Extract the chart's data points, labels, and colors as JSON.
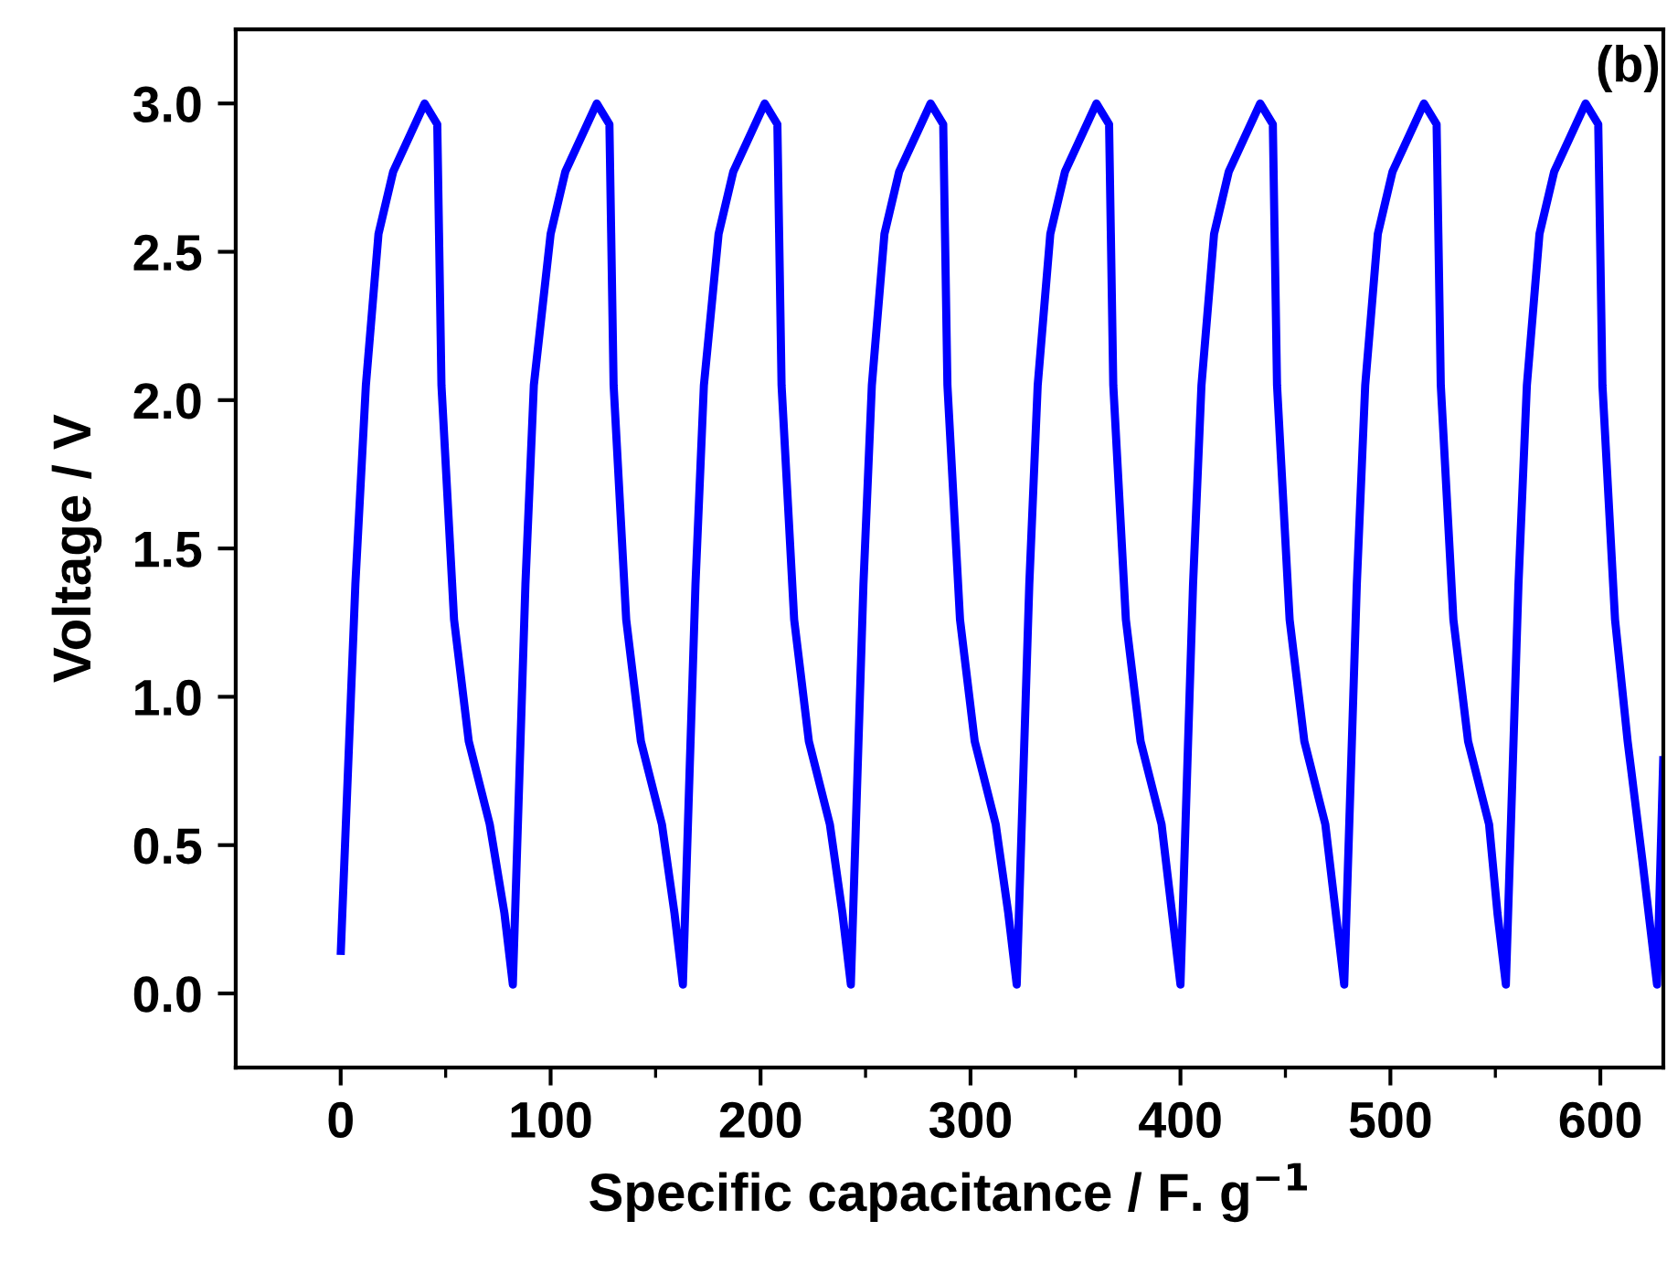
{
  "chart_data": {
    "type": "line",
    "xlabel": "Specific capacitance / F. g$^{−1}$",
    "ylabel": "Voltage / V",
    "annotations": [
      "(b)"
    ],
    "xlim": [
      -50,
      630
    ],
    "ylim": [
      -0.25,
      3.25
    ],
    "xticks": [
      0,
      {
        "value": 50,
        "label": null
      },
      100,
      {
        "value": 150,
        "label": null
      },
      200,
      {
        "value": 250,
        "label": null
      },
      300,
      {
        "value": 350,
        "label": null
      },
      400,
      {
        "value": 450,
        "label": null
      },
      500,
      {
        "value": 550,
        "label": null
      },
      600
    ],
    "yticks": [
      {
        "value": 0.0,
        "label": "0.0"
      },
      {
        "value": 0.5,
        "label": "0.5"
      },
      {
        "value": 1.0,
        "label": "1.0"
      },
      {
        "value": 1.5,
        "label": "1.5"
      },
      {
        "value": 2.0,
        "label": "2.0"
      },
      {
        "value": 2.5,
        "label": "2.5"
      },
      {
        "value": 3.0,
        "label": "3.0"
      }
    ],
    "grid": false,
    "legend": false,
    "marker": "none",
    "line_style": "solid",
    "series": [
      {
        "color": "#0000ff",
        "x": [
          0,
          7,
          12,
          18,
          25,
          40,
          46,
          48,
          54,
          61,
          71,
          78,
          82,
          88,
          92,
          100,
          107,
          122,
          128,
          130,
          136,
          143,
          153,
          159,
          163,
          169,
          173,
          180,
          187,
          202,
          208,
          210,
          216,
          223,
          233,
          239,
          243,
          249,
          253,
          259,
          266,
          281,
          287,
          289,
          295,
          302,
          312,
          318,
          322,
          328,
          332,
          338,
          345,
          360,
          366,
          368,
          374,
          381,
          391,
          396,
          400,
          406,
          410,
          416,
          423,
          438,
          444,
          446,
          452,
          459,
          469,
          474,
          478,
          484,
          488,
          494,
          501,
          516,
          522,
          524,
          530,
          537,
          547,
          551,
          555,
          561,
          565,
          571,
          578,
          593,
          599,
          601,
          607,
          613,
          620,
          627,
          630
        ],
        "values": [
          0.13,
          1.38,
          2.05,
          2.56,
          2.77,
          3.0,
          2.93,
          2.05,
          1.26,
          0.85,
          0.57,
          0.27,
          0.03,
          1.38,
          2.05,
          2.56,
          2.77,
          3.0,
          2.93,
          2.05,
          1.26,
          0.85,
          0.57,
          0.27,
          0.03,
          1.38,
          2.05,
          2.56,
          2.77,
          3.0,
          2.93,
          2.05,
          1.26,
          0.85,
          0.57,
          0.27,
          0.03,
          1.38,
          2.05,
          2.56,
          2.77,
          3.0,
          2.93,
          2.05,
          1.26,
          0.85,
          0.57,
          0.27,
          0.03,
          1.38,
          2.05,
          2.56,
          2.77,
          3.0,
          2.93,
          2.05,
          1.26,
          0.85,
          0.57,
          0.27,
          0.03,
          1.38,
          2.05,
          2.56,
          2.77,
          3.0,
          2.93,
          2.05,
          1.26,
          0.85,
          0.57,
          0.27,
          0.03,
          1.38,
          2.05,
          2.56,
          2.77,
          3.0,
          2.93,
          2.05,
          1.26,
          0.85,
          0.57,
          0.27,
          0.03,
          1.38,
          2.05,
          2.56,
          2.77,
          3.0,
          2.93,
          2.05,
          1.26,
          0.85,
          0.45,
          0.03,
          0.8
        ]
      }
    ]
  }
}
